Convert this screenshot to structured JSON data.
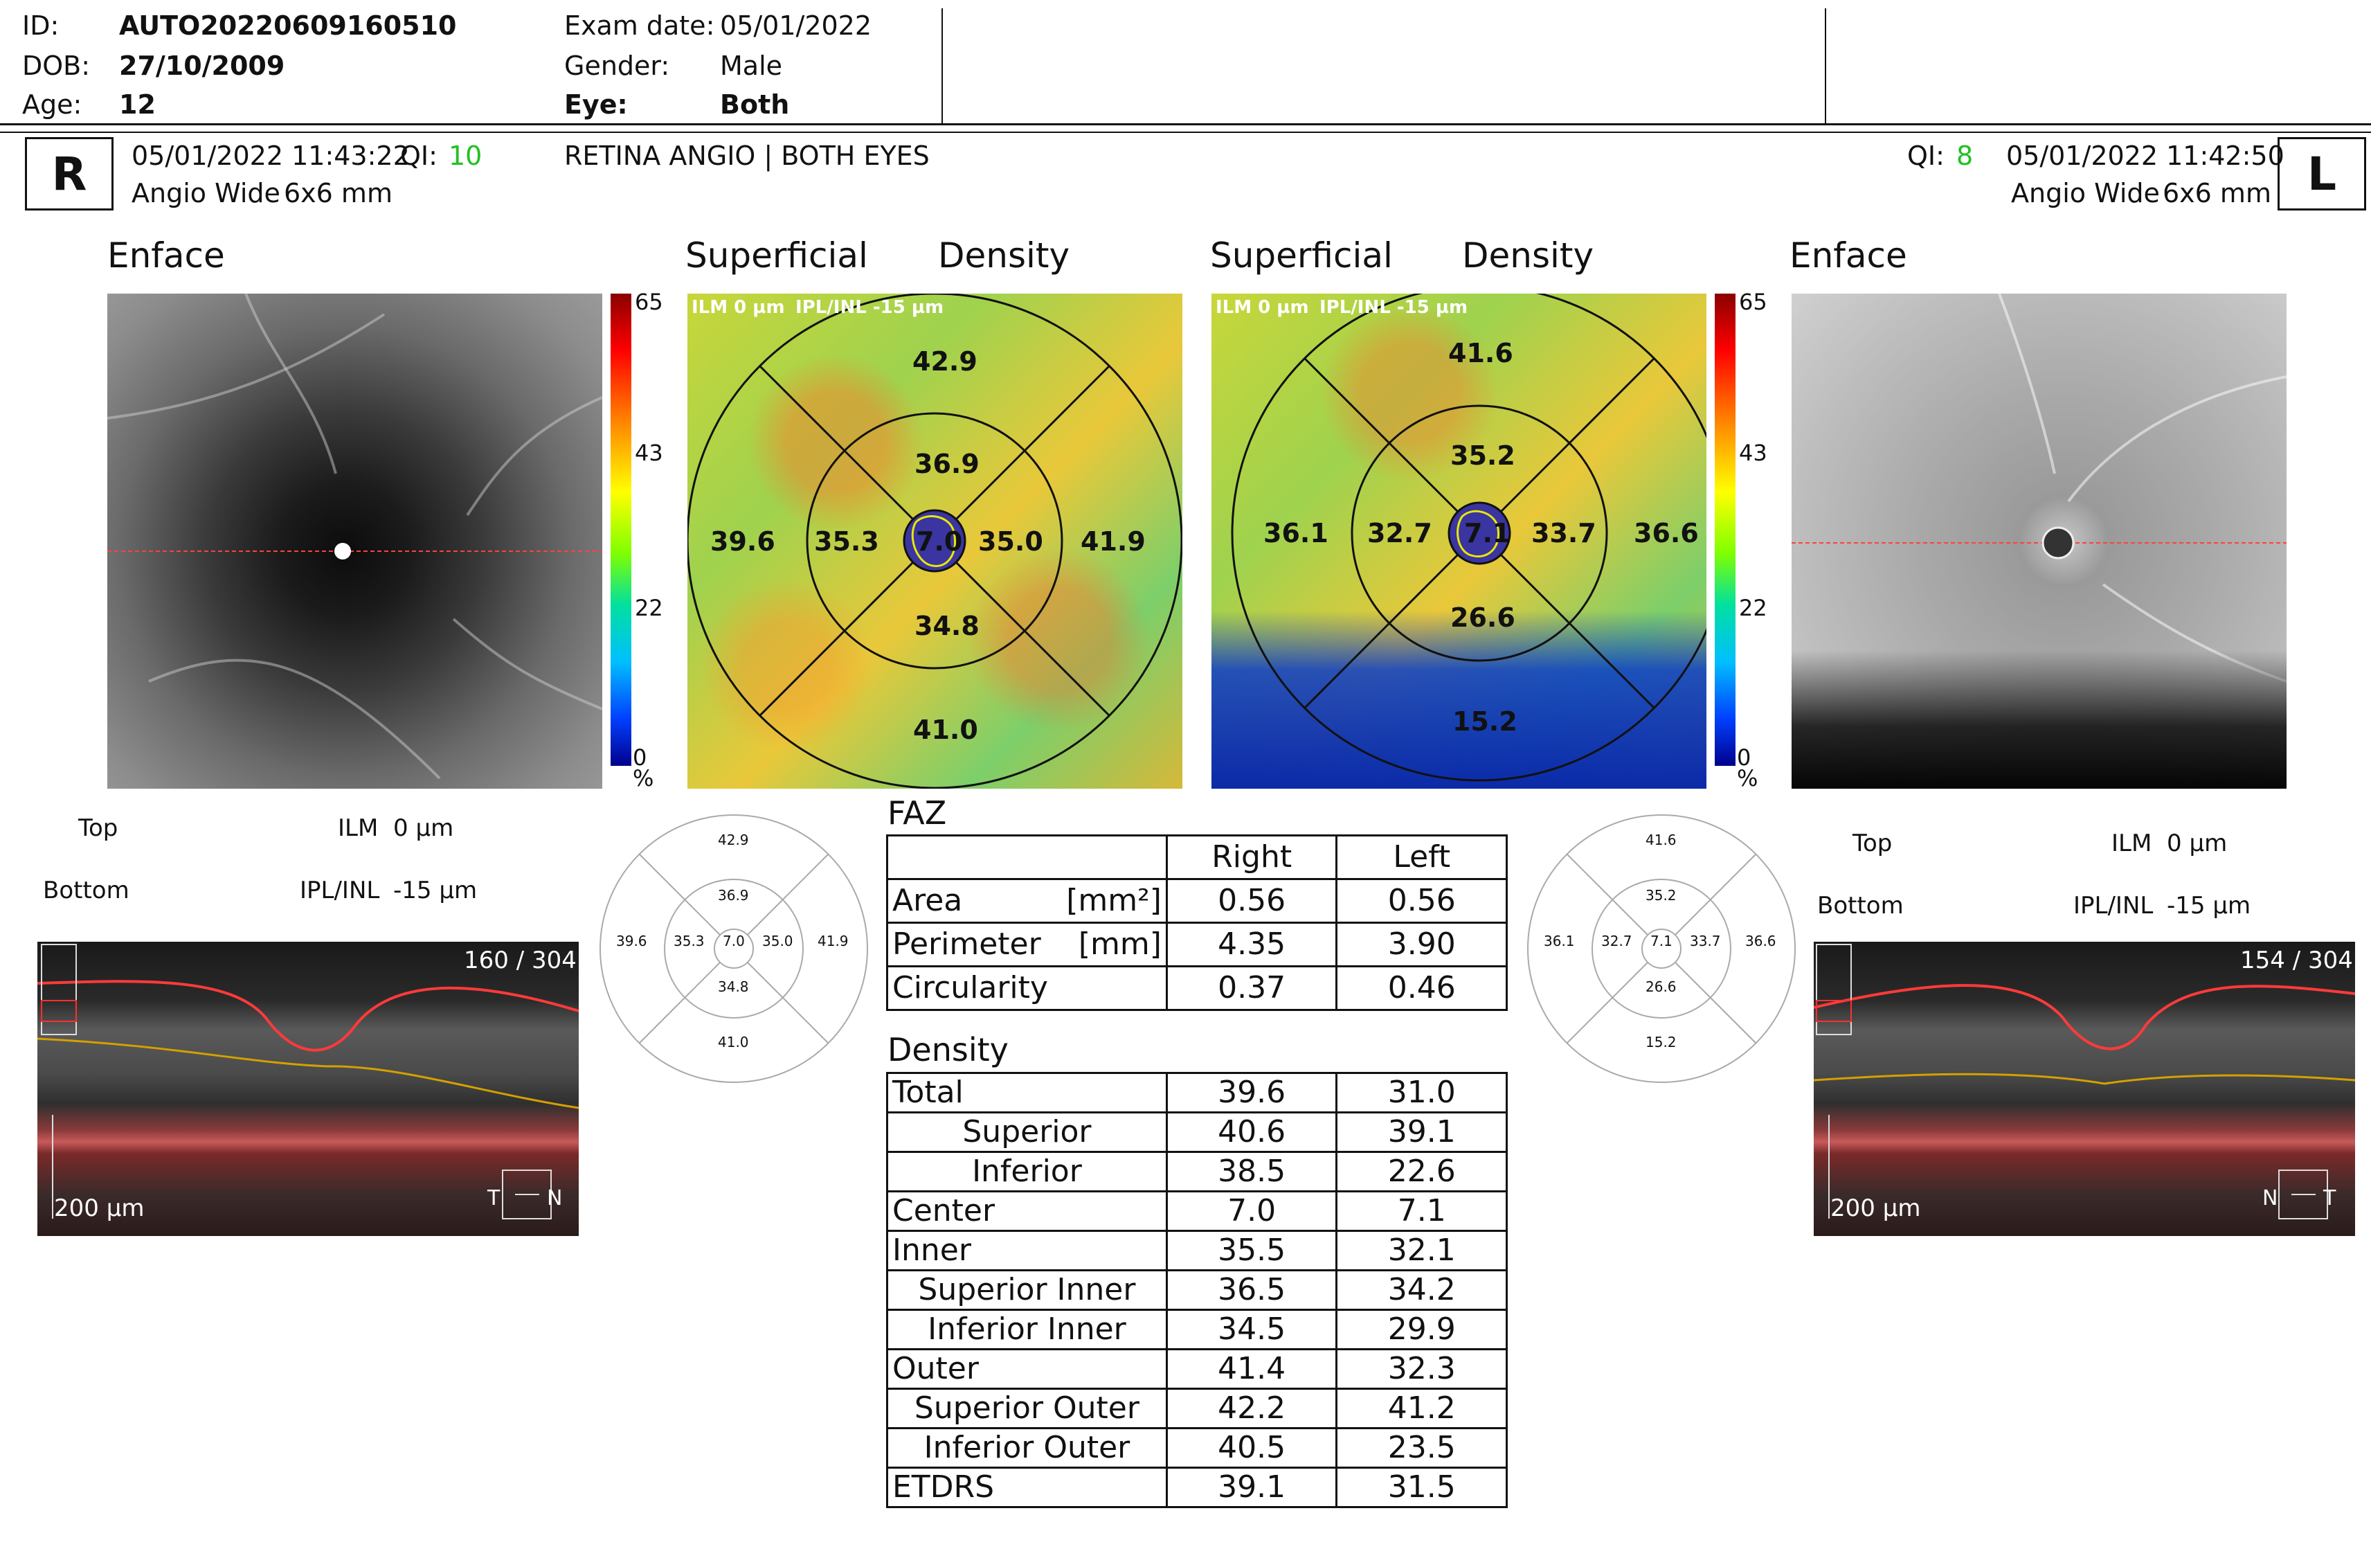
{
  "patient": {
    "id_label": "ID:",
    "id_value": "AUTO20220609160510",
    "dob_label": "DOB:",
    "dob_value": "27/10/2009",
    "age_label": "Age:",
    "age_value": "12",
    "exam_date_label": "Exam date:",
    "exam_date_value": "05/01/2022",
    "gender_label": "Gender:",
    "gender_value": "Male",
    "eye_label": "Eye:",
    "eye_value": "Both"
  },
  "scan_header": {
    "right_eye_letter": "R",
    "right_datetime": "05/01/2022 11:43:22",
    "right_qi_label": "QI:",
    "right_qi_value": "10",
    "right_protocol": "Angio Wide",
    "right_size": "6x6 mm",
    "scan_title": "RETINA ANGIO | BOTH EYES",
    "left_eye_letter": "L",
    "left_datetime": "05/01/2022 11:42:50",
    "left_qi_label": "QI:",
    "left_qi_value": "8",
    "left_protocol": "Angio Wide",
    "left_size": "6x6 mm"
  },
  "panels": {
    "enface_title": "Enface",
    "superficial_title": "Superficial",
    "density_title": "Density",
    "map_overlay_ilm": "ILM 0 µm",
    "map_overlay_ipl": "IPL/INL -15 µm"
  },
  "colorbar": {
    "max": "65",
    "mid": "43",
    "low": "22",
    "min": "0",
    "unit": "%"
  },
  "right_map": {
    "superior_outer": "42.9",
    "superior_inner": "36.9",
    "temporal_outer": "39.6",
    "temporal_inner": "35.3",
    "center": "7.0",
    "nasal_inner": "35.0",
    "nasal_outer": "41.9",
    "inferior_inner": "34.8",
    "inferior_outer": "41.0"
  },
  "left_map": {
    "superior_outer": "41.6",
    "superior_inner": "35.2",
    "temporal_outer": "36.1",
    "temporal_inner": "32.7",
    "center": "7.1",
    "nasal_inner": "33.7",
    "nasal_outer": "36.6",
    "inferior_inner": "26.6",
    "inferior_outer": "15.2"
  },
  "segmentation": {
    "top_label": "Top",
    "top_layer": "ILM",
    "top_offset": "0 µm",
    "bottom_label": "Bottom",
    "bottom_layer": "IPL/INL",
    "bottom_offset": "-15 µm"
  },
  "bscan_right": {
    "counter": "160 / 304",
    "scale": "200 µm",
    "orient_left": "T",
    "orient_right": "N"
  },
  "bscan_left": {
    "counter": "154 / 304",
    "scale": "200 µm",
    "orient_left": "N",
    "orient_right": "T"
  },
  "faz": {
    "title": "FAZ",
    "col_right": "Right",
    "col_left": "Left",
    "rows": [
      {
        "label": "Area",
        "unit": "[mm²]",
        "right": "0.56",
        "left": "0.56"
      },
      {
        "label": "Perimeter",
        "unit": "[mm]",
        "right": "4.35",
        "left": "3.90"
      },
      {
        "label": "Circularity",
        "unit": "",
        "right": "0.37",
        "left": "0.46"
      }
    ]
  },
  "density_table": {
    "title": "Density",
    "rows": [
      {
        "label": "Total",
        "right": "39.6",
        "left": "31.0"
      },
      {
        "label": "Superior",
        "right": "40.6",
        "left": "39.1"
      },
      {
        "label": "Inferior",
        "right": "38.5",
        "left": "22.6"
      },
      {
        "label": "Center",
        "right": "7.0",
        "left": "7.1"
      },
      {
        "label": "Inner",
        "right": "35.5",
        "left": "32.1"
      },
      {
        "label": "Superior Inner",
        "right": "36.5",
        "left": "34.2"
      },
      {
        "label": "Inferior Inner",
        "right": "34.5",
        "left": "29.9"
      },
      {
        "label": "Outer",
        "right": "41.4",
        "left": "32.3"
      },
      {
        "label": "Superior Outer",
        "right": "42.2",
        "left": "41.2"
      },
      {
        "label": "Inferior Outer",
        "right": "40.5",
        "left": "23.5"
      },
      {
        "label": "ETDRS",
        "right": "39.1",
        "left": "31.5"
      }
    ]
  },
  "colors": {
    "qi_good": "#22c022",
    "accent_red": "#ff2020",
    "faz_outline": "#e8e800"
  }
}
